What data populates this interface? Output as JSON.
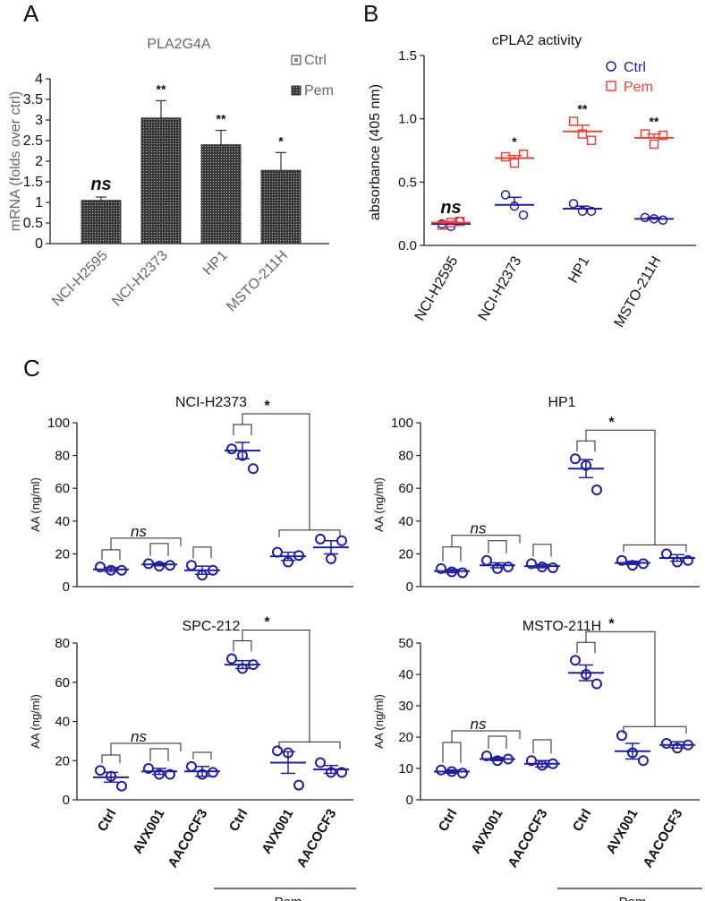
{
  "panel_labels": {
    "A": "A",
    "B": "B",
    "C": "C"
  },
  "colors": {
    "ctrl": "#1f1f9e",
    "pem": "#e8443a",
    "axis": "#222222",
    "text": "#111111",
    "gray": "#666666"
  },
  "chart_data": [
    {
      "id": "A",
      "type": "bar",
      "title": "PLA2G4A",
      "ylabel": "mRNA (folds over ctrl)",
      "xlabel": "",
      "ylim": [
        0,
        4
      ],
      "yticks": [
        "0",
        "0.5",
        "1",
        "1.5",
        "2",
        "2.5",
        "3",
        "3.5",
        "4"
      ],
      "yticks_values": [
        0,
        0.5,
        1,
        1.5,
        2,
        2.5,
        3,
        3.5,
        4
      ],
      "categories": [
        "NCI-H2595",
        "NCI-H2373",
        "HP1",
        "MSTO-211H"
      ],
      "legend": [
        "Ctrl",
        "Pem"
      ],
      "series": [
        {
          "name": "Pem",
          "values": [
            1.05,
            3.05,
            2.4,
            1.78
          ],
          "errors": [
            0.08,
            0.42,
            0.35,
            0.43
          ]
        }
      ],
      "annotations": [
        "ns",
        "**",
        "**",
        "*"
      ]
    },
    {
      "id": "B",
      "type": "scatter",
      "title": "cPLA2 activity",
      "ylabel": "absorbance (405 nm)",
      "ylim": [
        0,
        1.5
      ],
      "yticks": [
        "0.0",
        "0.5",
        "1.0",
        "1.5"
      ],
      "yticks_values": [
        0,
        0.5,
        1.0,
        1.5
      ],
      "categories": [
        "NCI-H2595",
        "NCI-H2373",
        "HP1",
        "MSTO-211H"
      ],
      "legend": [
        "Ctrl",
        "Pem"
      ],
      "series": [
        {
          "name": "Ctrl",
          "points": [
            [
              0.17,
              0.15,
              0.19
            ],
            [
              0.4,
              0.31,
              0.24
            ],
            [
              0.33,
              0.27,
              0.27
            ],
            [
              0.22,
              0.21,
              0.2
            ]
          ],
          "means": [
            0.17,
            0.32,
            0.29,
            0.21
          ],
          "sems": [
            0.01,
            0.06,
            0.02,
            0.01
          ]
        },
        {
          "name": "Pem",
          "points": [
            [
              0.16,
              0.18,
              0.19
            ],
            [
              0.7,
              0.65,
              0.72
            ],
            [
              0.98,
              0.88,
              0.83
            ],
            [
              0.88,
              0.8,
              0.87
            ]
          ],
          "means": [
            0.18,
            0.69,
            0.9,
            0.85
          ],
          "sems": [
            0.01,
            0.02,
            0.05,
            0.03
          ]
        }
      ],
      "annotations": [
        "ns",
        "*",
        "**",
        "**"
      ]
    },
    {
      "id": "C1",
      "type": "scatter",
      "title": "NCI-H2373",
      "ylabel": "AA (ng/ml)",
      "ylim": [
        0,
        100
      ],
      "yticks": [
        "0",
        "20",
        "40",
        "60",
        "80",
        "100"
      ],
      "yticks_values": [
        0,
        20,
        40,
        60,
        80,
        100
      ],
      "categories": [
        "Ctrl",
        "AVX001",
        "AACOCF3",
        "Ctrl",
        "AVX001",
        "AACOCF3"
      ],
      "group_label": "Pem",
      "points": [
        [
          12,
          10,
          10
        ],
        [
          14,
          12.5,
          13
        ],
        [
          13,
          7,
          10
        ],
        [
          84,
          80,
          72
        ],
        [
          21,
          15,
          19
        ],
        [
          29,
          17,
          28
        ]
      ],
      "means": [
        10.5,
        13.5,
        10,
        83,
        18.5,
        24
      ],
      "sems": [
        1.2,
        0.8,
        2.5,
        5,
        2.5,
        4
      ],
      "annotations": [
        "ns",
        "*"
      ]
    },
    {
      "id": "C2",
      "type": "scatter",
      "title": "HP1",
      "ylabel": "AA (ng/ml)",
      "ylim": [
        0,
        100
      ],
      "yticks": [
        "0",
        "20",
        "40",
        "60",
        "80",
        "100"
      ],
      "yticks_values": [
        0,
        20,
        40,
        60,
        80,
        100
      ],
      "categories": [
        "Ctrl",
        "AVX001",
        "AACOCF3",
        "Ctrl",
        "AVX001",
        "AACOCF3"
      ],
      "group_label": "Pem",
      "points": [
        [
          11,
          9,
          8.5
        ],
        [
          16,
          11,
          12
        ],
        [
          14,
          12,
          11.5
        ],
        [
          78,
          74,
          59
        ],
        [
          16,
          13,
          14
        ],
        [
          20,
          15,
          16
        ]
      ],
      "means": [
        9.5,
        13,
        12.5,
        72,
        14.5,
        17.5
      ],
      "sems": [
        1,
        1.5,
        1,
        5.5,
        1,
        2
      ]
    },
    {
      "id": "C3",
      "type": "scatter",
      "title": "SPC-212",
      "ylabel": "AA (ng/ml)",
      "ylim": [
        0,
        80
      ],
      "yticks": [
        "0",
        "20",
        "40",
        "60",
        "80"
      ],
      "yticks_values": [
        0,
        20,
        40,
        60,
        80
      ],
      "categories": [
        "Ctrl",
        "AVX001",
        "AACOCF3",
        "Ctrl",
        "AVX001",
        "AACOCF3"
      ],
      "group_label": "Pem",
      "points": [
        [
          15,
          12,
          7
        ],
        [
          16,
          13,
          13
        ],
        [
          17,
          13,
          14
        ],
        [
          72,
          67,
          69
        ],
        [
          25,
          24,
          7.5
        ],
        [
          19,
          14,
          14
        ]
      ],
      "means": [
        11.5,
        14.5,
        14.5,
        69,
        19,
        15.5
      ],
      "sems": [
        2.5,
        1.5,
        2.5,
        2,
        5.5,
        2
      ],
      "annotations": [
        "ns",
        "*"
      ]
    },
    {
      "id": "C4",
      "type": "scatter",
      "title": "MSTO-211H",
      "ylabel": "AA (ng/ml)",
      "ylim": [
        0,
        50
      ],
      "yticks": [
        "0",
        "10",
        "20",
        "30",
        "40",
        "50"
      ],
      "yticks_values": [
        0,
        10,
        20,
        30,
        40,
        50
      ],
      "categories": [
        "Ctrl",
        "AVX001",
        "AACOCF3",
        "Ctrl",
        "AVX001",
        "AACOCF3"
      ],
      "group_label": "Pem",
      "points": [
        [
          9.5,
          9,
          8.5
        ],
        [
          14,
          12.5,
          13
        ],
        [
          12.5,
          11,
          11.5
        ],
        [
          44.5,
          40,
          37
        ],
        [
          20.5,
          15,
          12.5
        ],
        [
          18,
          16.5,
          17.5
        ]
      ],
      "means": [
        9,
        13,
        11.5,
        40.5,
        15.5,
        17.5
      ],
      "sems": [
        0.5,
        0.5,
        1,
        2.5,
        2.5,
        1
      ],
      "annotations": [
        "ns",
        "*"
      ]
    }
  ]
}
